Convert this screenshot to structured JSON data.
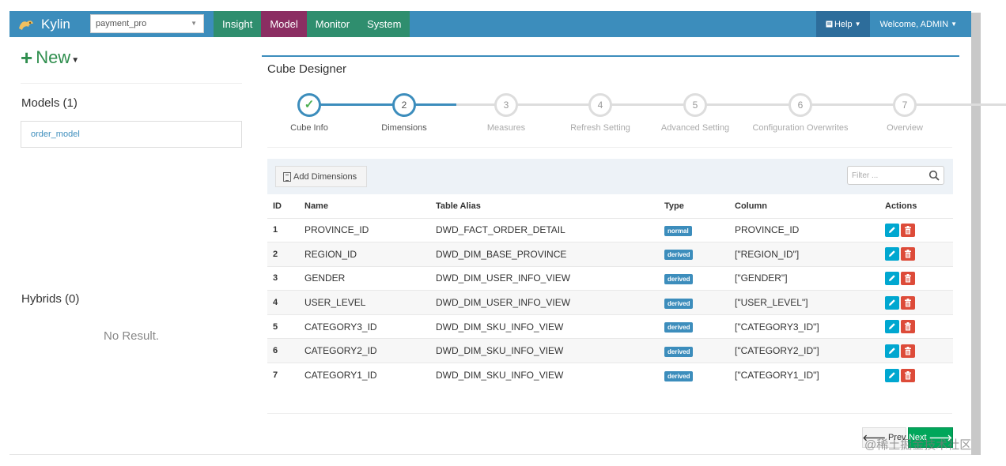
{
  "navbar": {
    "brand": "Kylin",
    "project": "payment_pro",
    "menu": [
      "Insight",
      "Model",
      "Monitor",
      "System"
    ],
    "help": "Help",
    "welcome": "Welcome, ADMIN"
  },
  "sidebar": {
    "new_label": "New",
    "models_title": "Models (1)",
    "models": [
      "order_model"
    ],
    "hybrids_title": "Hybrids (0)",
    "no_result": "No Result."
  },
  "designer": {
    "title": "Cube Designer",
    "steps": [
      {
        "num": "✓",
        "label": "Cube Info",
        "state": "done"
      },
      {
        "num": "2",
        "label": "Dimensions",
        "state": "active"
      },
      {
        "num": "3",
        "label": "Measures",
        "state": "todo"
      },
      {
        "num": "4",
        "label": "Refresh Setting",
        "state": "todo"
      },
      {
        "num": "5",
        "label": "Advanced Setting",
        "state": "todo"
      },
      {
        "num": "6",
        "label": "Configuration Overwrites",
        "state": "todo"
      },
      {
        "num": "7",
        "label": "Overview",
        "state": "todo"
      }
    ],
    "add_dimensions": "Add Dimensions",
    "filter_placeholder": "Filter ...",
    "columns": [
      "ID",
      "Name",
      "Table Alias",
      "Type",
      "Column",
      "Actions"
    ],
    "rows": [
      {
        "id": "1",
        "name": "PROVINCE_ID",
        "table": "DWD_FACT_ORDER_DETAIL",
        "type": "normal",
        "column": "PROVINCE_ID"
      },
      {
        "id": "2",
        "name": "REGION_ID",
        "table": "DWD_DIM_BASE_PROVINCE",
        "type": "derived",
        "column": "[\"REGION_ID\"]"
      },
      {
        "id": "3",
        "name": "GENDER",
        "table": "DWD_DIM_USER_INFO_VIEW",
        "type": "derived",
        "column": "[\"GENDER\"]"
      },
      {
        "id": "4",
        "name": "USER_LEVEL",
        "table": "DWD_DIM_USER_INFO_VIEW",
        "type": "derived",
        "column": "[\"USER_LEVEL\"]"
      },
      {
        "id": "5",
        "name": "CATEGORY3_ID",
        "table": "DWD_DIM_SKU_INFO_VIEW",
        "type": "derived",
        "column": "[\"CATEGORY3_ID\"]"
      },
      {
        "id": "6",
        "name": "CATEGORY2_ID",
        "table": "DWD_DIM_SKU_INFO_VIEW",
        "type": "derived",
        "column": "[\"CATEGORY2_ID\"]"
      },
      {
        "id": "7",
        "name": "CATEGORY1_ID",
        "table": "DWD_DIM_SKU_INFO_VIEW",
        "type": "derived",
        "column": "[\"CATEGORY1_ID\"]"
      }
    ],
    "prev_label": "Prev",
    "next_label": "Next"
  },
  "watermark": "@稀土掘金技术社区",
  "colors": {
    "primary": "#3c8dbc",
    "nav_green": "#2f8e6e",
    "nav_model": "#8b2e62",
    "success": "#00a65a",
    "danger": "#dd4b39",
    "info": "#00a7d0"
  }
}
